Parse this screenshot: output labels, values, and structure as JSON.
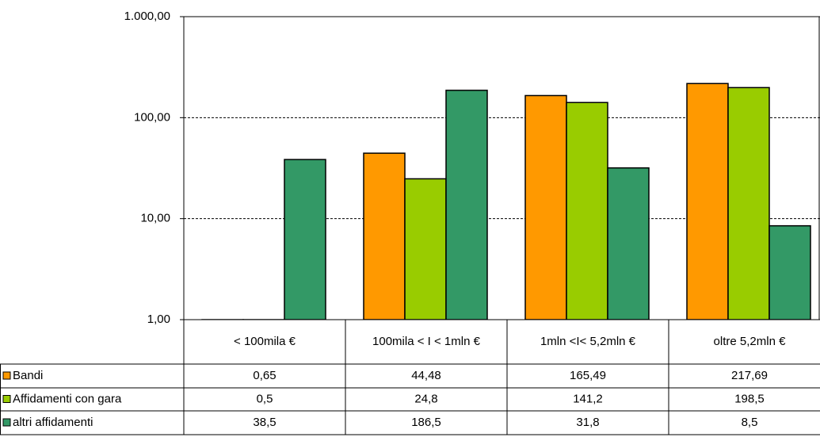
{
  "chart_data": {
    "type": "bar",
    "categories": [
      "< 100mila €",
      "100mila  < I < 1mln €",
      "1mln  <I< 5,2mln €",
      "oltre 5,2mln €"
    ],
    "series": [
      {
        "name": "Bandi",
        "color": "#ff9900",
        "values": [
          0.65,
          44.48,
          165.49,
          217.69
        ],
        "value_labels": [
          "0,65",
          "44,48",
          "165,49",
          "217,69"
        ]
      },
      {
        "name": "Affidamenti con gara",
        "color": "#99cc00",
        "values": [
          0.5,
          24.8,
          141.2,
          198.5
        ],
        "value_labels": [
          "0,5",
          "24,8",
          "141,2",
          "198,5"
        ]
      },
      {
        "name": "altri affidamenti",
        "color": "#339966",
        "values": [
          38.5,
          186.5,
          31.8,
          8.5
        ],
        "value_labels": [
          "38,5",
          "186,5",
          "31,8",
          "8,5"
        ]
      }
    ],
    "ylim": [
      1,
      1000
    ],
    "log_scale": true,
    "yticks": [
      {
        "value": 1,
        "label": "1,00"
      },
      {
        "value": 10,
        "label": "10,00"
      },
      {
        "value": 100,
        "label": "100,00"
      },
      {
        "value": 1000,
        "label": "1.000,00"
      }
    ],
    "grid": true
  }
}
